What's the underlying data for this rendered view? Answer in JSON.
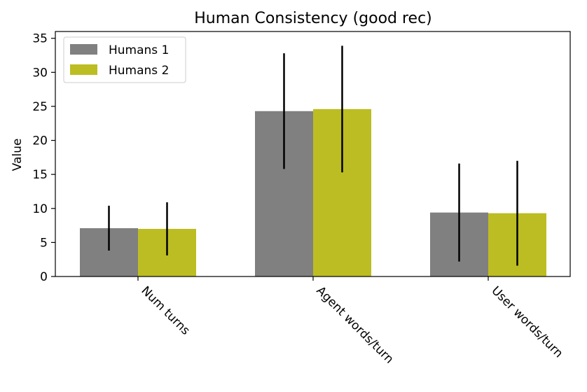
{
  "chart_data": {
    "type": "bar",
    "title": "Human Consistency (good rec)",
    "xlabel": "",
    "ylabel": "Value",
    "ylim": [
      0,
      36
    ],
    "yticks": [
      0,
      5,
      10,
      15,
      20,
      25,
      30,
      35
    ],
    "categories": [
      "Num turns",
      "Agent words/turn",
      "User words/turn"
    ],
    "series": [
      {
        "name": "Humans 1",
        "color": "#808080",
        "values": [
          7.1,
          24.3,
          9.4
        ],
        "error": [
          3.3,
          8.5,
          7.2
        ]
      },
      {
        "name": "Humans 2",
        "color": "#bcbd22",
        "values": [
          7.0,
          24.6,
          9.3
        ],
        "error": [
          3.9,
          9.3,
          7.7
        ]
      }
    ],
    "grid": false,
    "legend": "top-left",
    "error_bars": true
  }
}
